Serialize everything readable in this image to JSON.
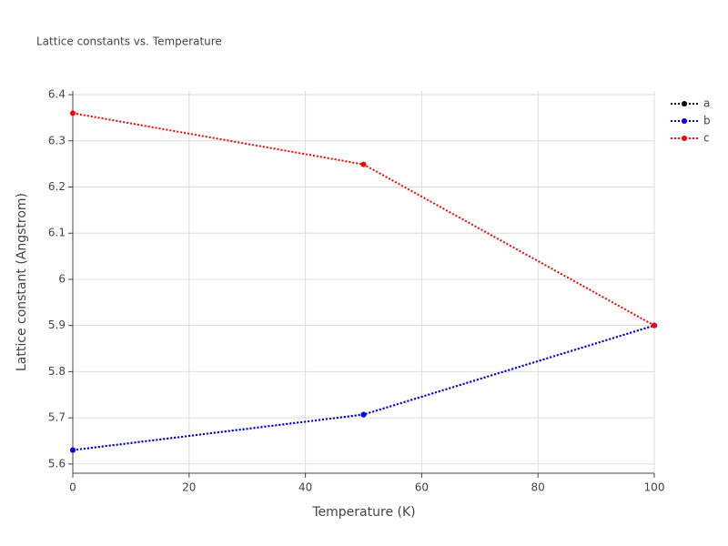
{
  "chart_data": {
    "type": "line",
    "title": "Lattice constants vs. Temperature",
    "x_label": "Temperature (K)",
    "y_label": "Lattice constant (Angstrom)",
    "x": [
      0,
      50,
      100
    ],
    "series": [
      {
        "name": "a",
        "color": "#000000",
        "values": [
          5.63,
          5.707,
          5.9
        ]
      },
      {
        "name": "b",
        "color": "#0000ff",
        "values": [
          5.63,
          5.707,
          5.9
        ]
      },
      {
        "name": "c",
        "color": "#ff0000",
        "values": [
          6.36,
          6.249,
          5.9
        ]
      }
    ],
    "xlim": [
      0,
      100
    ],
    "xticks": [
      0,
      20,
      40,
      60,
      80,
      100
    ],
    "ylim": [
      5.58,
      6.408
    ],
    "yticks": [
      5.6,
      5.7,
      5.8,
      5.9,
      6,
      6.1,
      6.2,
      6.3,
      6.4
    ],
    "grid": true,
    "legend_position": "top-right"
  }
}
